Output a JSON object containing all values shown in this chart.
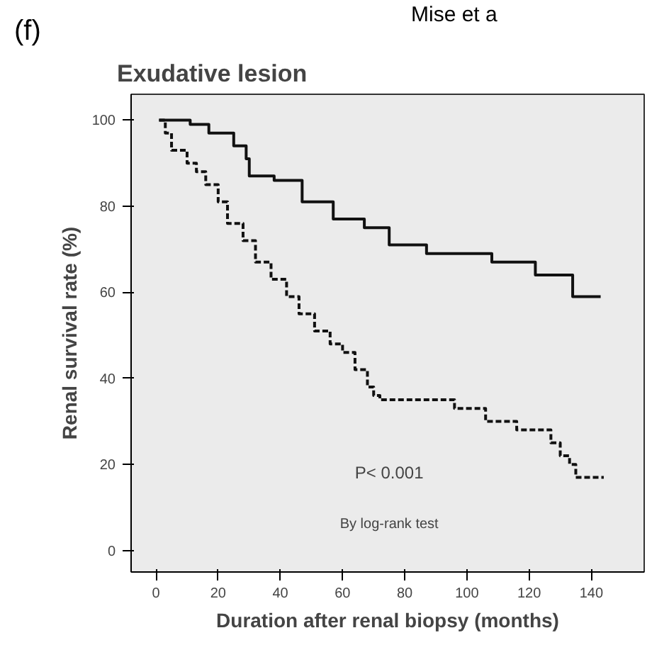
{
  "chart_data": {
    "type": "step",
    "title": "Exudative lesion",
    "xlabel": "Duration after renal biopsy (months)",
    "ylabel": "Renal survival rate (%)",
    "annotations": [
      "(f)",
      "Mise et a",
      "P< 0.001",
      "By log-rank test"
    ],
    "xlim": [
      -8,
      157
    ],
    "ylim": [
      -5,
      106
    ],
    "xticks": [
      0,
      20,
      40,
      60,
      80,
      100,
      120,
      140
    ],
    "yticks": [
      0,
      20,
      40,
      60,
      80,
      100
    ],
    "grid": false,
    "marker": "none",
    "series": [
      {
        "color": "#111111",
        "line_style": "solid",
        "x": [
          1,
          11,
          17,
          25,
          29,
          30,
          38,
          47,
          57,
          67,
          75,
          87,
          108,
          122,
          134,
          143
        ],
        "values": [
          100,
          99,
          97,
          94,
          91,
          87,
          86,
          81,
          77,
          75,
          71,
          69,
          67,
          64,
          59,
          59
        ]
      },
      {
        "color": "#111111",
        "line_style": "dashed",
        "x": [
          1,
          3,
          5,
          10,
          13,
          16,
          20,
          23,
          28,
          32,
          37,
          42,
          46,
          51,
          56,
          60,
          64,
          68,
          70,
          72,
          96,
          106,
          116,
          127,
          130,
          133,
          135,
          137,
          144
        ],
        "values": [
          100,
          97,
          93,
          90,
          88,
          85,
          81,
          76,
          72,
          67,
          63,
          59,
          55,
          51,
          48,
          46,
          42,
          38,
          36,
          35,
          33,
          30,
          28,
          25,
          22,
          20,
          17,
          17,
          17
        ]
      }
    ]
  }
}
